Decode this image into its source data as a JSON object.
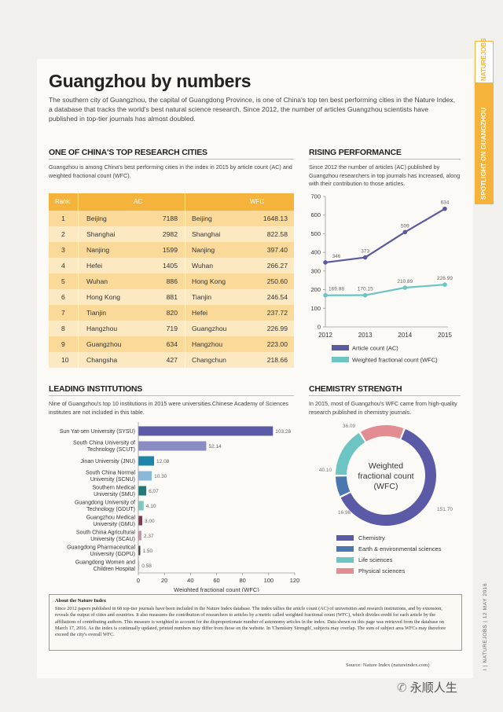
{
  "header": {
    "title": "Guangzhou by numbers",
    "intro": "The southern city of Guangzhou, the capital of Guangdong Province, is one of China's top ten best performing cities in the Nature Index, a database that tracks the world's best natural science research. Since 2012, the number of articles Guangzhou scientists have published in top-tier journals has almost doubled."
  },
  "sidetab": {
    "brand": "NATUREJOBS",
    "label": "SPOTLIGHT ON GUANGZHOU",
    "date": "12 MAY 2016",
    "pub": "NATUREJOBS",
    "page": "I"
  },
  "top_cities": {
    "title": "ONE OF CHINA'S TOP RESEARCH CITIES",
    "desc": "Guangzhou is among China's best performing cities in the index in 2015 by article count (AC) and weighted fractional count (WFC).",
    "headers": {
      "rank": "Rank",
      "ac": "AC",
      "wfc": "WFC"
    },
    "rows": [
      {
        "rank": "1",
        "ac_city": "Beijing",
        "ac": "7188",
        "wfc_city": "Beijing",
        "wfc": "1648.13"
      },
      {
        "rank": "2",
        "ac_city": "Shanghai",
        "ac": "2982",
        "wfc_city": "Shanghai",
        "wfc": "822.58"
      },
      {
        "rank": "3",
        "ac_city": "Nanjing",
        "ac": "1599",
        "wfc_city": "Nanjing",
        "wfc": "397.40"
      },
      {
        "rank": "4",
        "ac_city": "Hefei",
        "ac": "1405",
        "wfc_city": "Wuhan",
        "wfc": "266.27"
      },
      {
        "rank": "5",
        "ac_city": "Wuhan",
        "ac": "886",
        "wfc_city": "Hong Kong",
        "wfc": "250.60"
      },
      {
        "rank": "6",
        "ac_city": "Hong Kong",
        "ac": "881",
        "wfc_city": "Tianjin",
        "wfc": "246.54"
      },
      {
        "rank": "7",
        "ac_city": "Tianjin",
        "ac": "820",
        "wfc_city": "Hefei",
        "wfc": "237.72"
      },
      {
        "rank": "8",
        "ac_city": "Hangzhou",
        "ac": "719",
        "wfc_city": "Guangzhou",
        "wfc": "226.99"
      },
      {
        "rank": "9",
        "ac_city": "Guangzhou",
        "ac": "634",
        "wfc_city": "Hangzhou",
        "wfc": "223.00"
      },
      {
        "rank": "10",
        "ac_city": "Changsha",
        "ac": "427",
        "wfc_city": "Changchun",
        "wfc": "218.66"
      }
    ]
  },
  "rising": {
    "title": "RISING PERFORMANCE",
    "desc": "Since 2012 the number of articles (AC) published by Guangzhou researchers in top journals has increased, along with their contribution to those articles."
  },
  "institutions": {
    "title": "LEADING INSTITUTIONS",
    "desc": "Nine of Guangzhou's top 10 institutions in 2015 were universities.Chinese Academy of Sciences institutes are not included in this table."
  },
  "chemistry": {
    "title": "CHEMISTRY STRENGTH",
    "desc": "In 2015, most of Guangzhou's WFC came from high-quality research published in chemistry journals."
  },
  "about": {
    "heading": "About the Nature Index",
    "body": "Since 2012 papers published in 68 top-tier journals have been included in the Nature Index database. The index tallies the article count (AC) of universities and research institutions, and by extension, reveals the output of cities and countries. It also measures the contribution of researchers to articles by a metric called weighted fractional count (WFC), which divides credit for each article by the affiliations of contributing authors. This measure is weighted to account for the disproportionate number of astronomy articles in the index. Data shown on this page was retrieved from the database on March 17, 2016. As the index is continually updated, printed numbers may differ from those on the website. In 'Chemistry Strength', subjects may overlap. The sum of subject area WFCs may therefore exceed the city's overall WFC."
  },
  "source": "Source: Nature Index (natureindex.com)",
  "watermark": "永顺人生",
  "colors": {
    "orange": "#f6b33c",
    "purple": "#5a5a9e",
    "teal": "#6cc5c3",
    "blue": "#4a77b0",
    "pink": "#e38c92"
  },
  "chart_data": [
    {
      "type": "line",
      "x": [
        "2012",
        "2013",
        "2014",
        "2015"
      ],
      "ylim": [
        0,
        700
      ],
      "yticks": [
        "0",
        "100",
        "200",
        "300",
        "400",
        "500",
        "600",
        "700"
      ],
      "series": [
        {
          "name": "Article count (AC)",
          "values": [
            346,
            373,
            509,
            634
          ],
          "labels": [
            "346",
            "373",
            "509",
            "634"
          ],
          "color": "#5a5a9e"
        },
        {
          "name": "Weighted fractional count (WFC)",
          "values": [
            169.88,
            170.15,
            210.89,
            226.99
          ],
          "labels": [
            "169.88",
            "170.15",
            "210.89",
            "226.99"
          ],
          "color": "#6cc5c3"
        }
      ]
    },
    {
      "type": "bar",
      "orientation": "horizontal",
      "xlabel": "Weighted fractional count (WFC)",
      "xlim": [
        0,
        120
      ],
      "xticks": [
        "0",
        "20",
        "40",
        "60",
        "80",
        "100",
        "120"
      ],
      "categories": [
        [
          "Sun Yat-sen University (SYSU)"
        ],
        [
          "South China University of",
          "Technology (SCUT)"
        ],
        [
          "Jinan University (JNU)"
        ],
        [
          "South China Normal",
          "University (SCNU)"
        ],
        [
          "Southern Medical",
          "University (SMU)"
        ],
        [
          "Guangdong University of",
          "Technology (GDUT)"
        ],
        [
          "Guangzhou Medical",
          "University (GMU)"
        ],
        [
          "South China Agricultural",
          "University (SCAU)"
        ],
        [
          "Guangdong Pharmaceutical",
          "University (GDPU)"
        ],
        [
          "Guangdong Women and",
          "Children Hospital"
        ]
      ],
      "values": [
        103.28,
        52.14,
        12.08,
        10.3,
        6.07,
        4.1,
        3.0,
        2.37,
        1.5,
        0.58
      ],
      "labels": [
        "103.28",
        "52.14",
        "12.08",
        "10.30",
        "6.07",
        "4.10",
        "3.00",
        "2.37",
        "1.50",
        "0.58"
      ],
      "colors": [
        "#5a5aa6",
        "#8c8cc4",
        "#1f85a8",
        "#8ab8d8",
        "#1e7a78",
        "#7fc9c0",
        "#7d3a55",
        "#c893a5",
        "#444444",
        "#bbbbbb"
      ]
    },
    {
      "type": "pie",
      "variant": "donut",
      "center_label": [
        "Weighted",
        "fractional count",
        "(WFC)"
      ],
      "slices": [
        {
          "name": "Chemistry",
          "value": 151.7,
          "label": "151.70",
          "color": "#5a5aa6"
        },
        {
          "name": "Earth & environmental sciences",
          "value": 16.96,
          "label": "16.96",
          "color": "#4a77b0"
        },
        {
          "name": "Life sciences",
          "value": 40.1,
          "label": "40.10",
          "color": "#6cc5c3"
        },
        {
          "name": "Physical sciences",
          "value": 36.09,
          "label": "36.09",
          "color": "#e38c92"
        }
      ]
    }
  ]
}
